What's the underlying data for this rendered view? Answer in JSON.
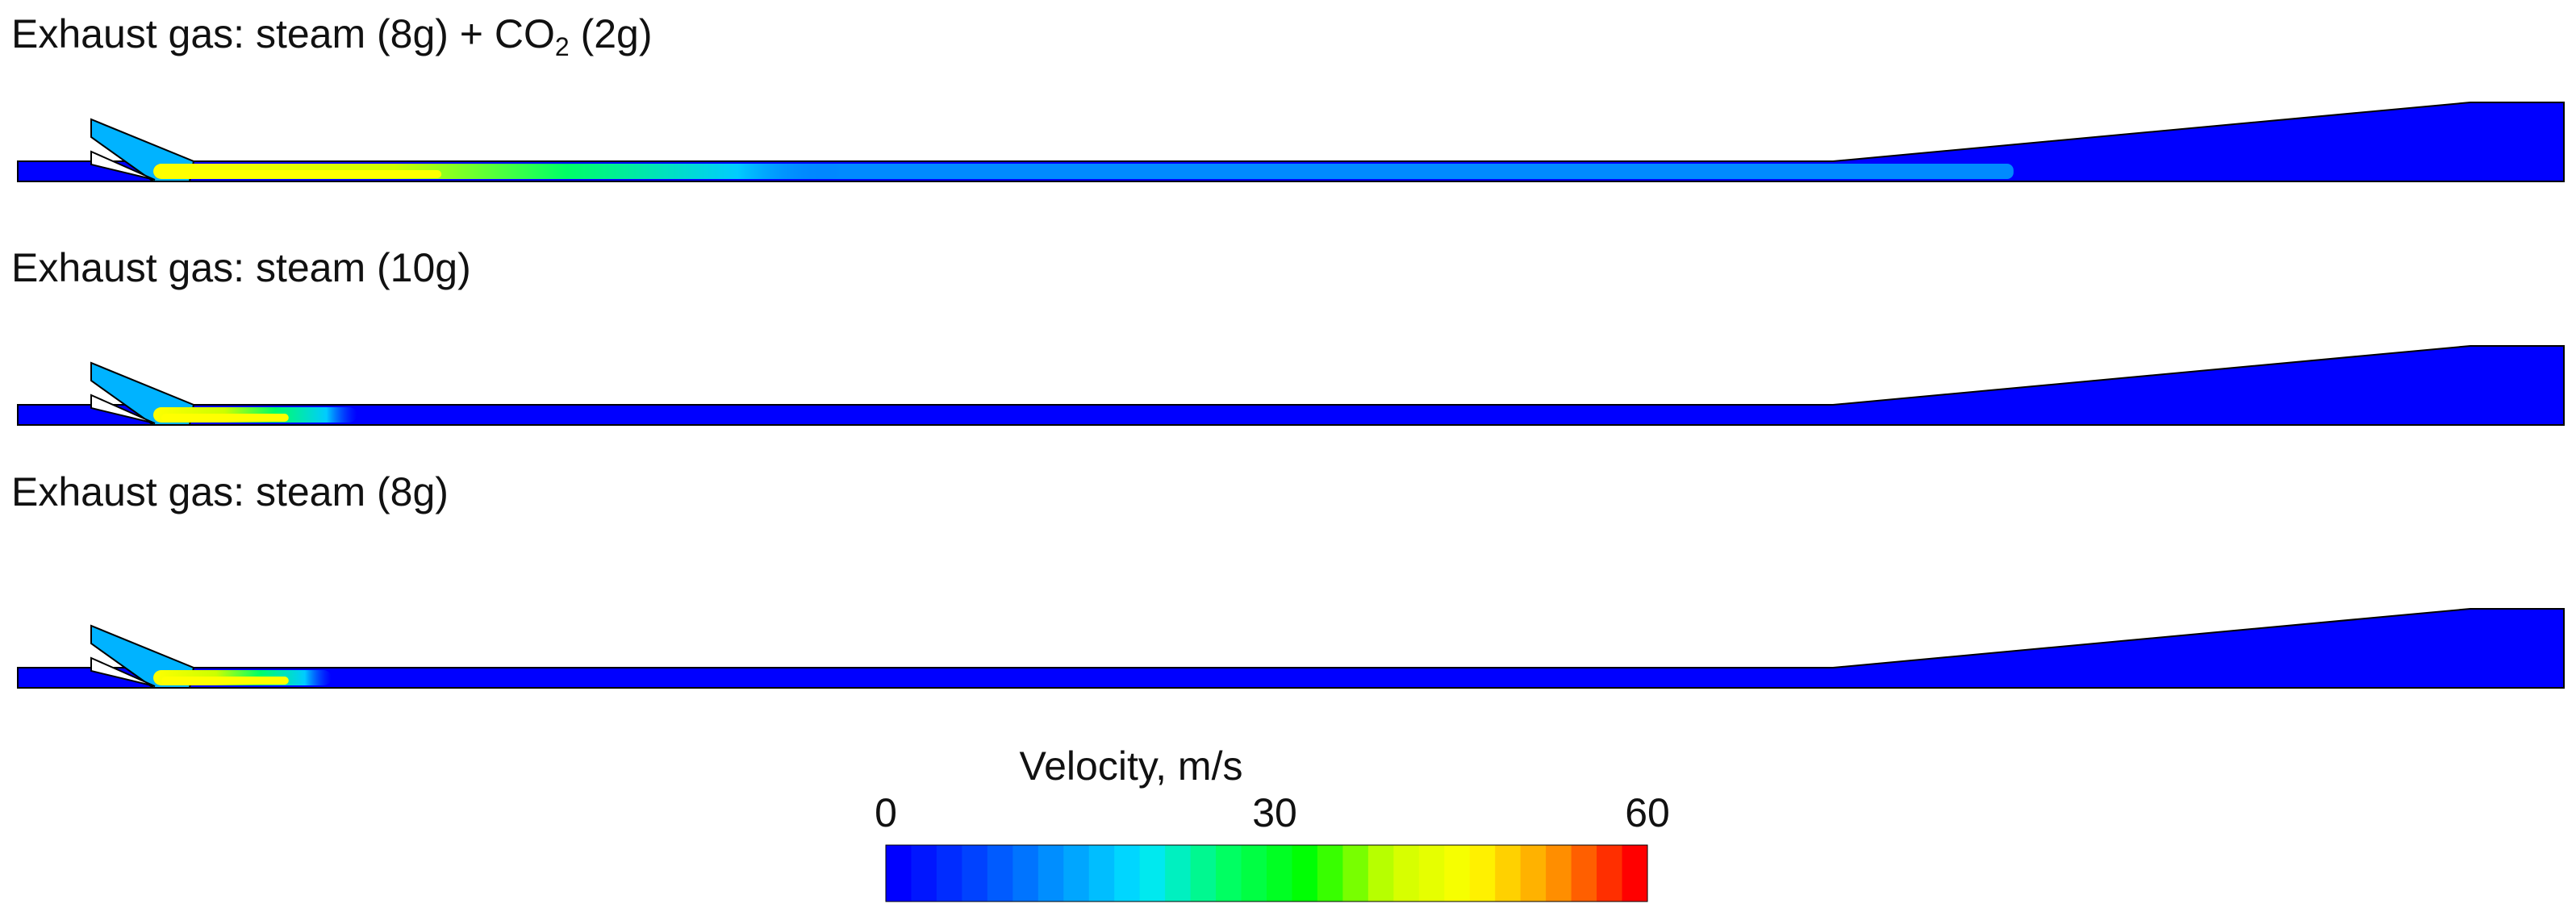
{
  "cases": [
    {
      "title_parts": [
        "Exhaust gas: steam (8g) + CO",
        "2",
        " (2g)"
      ],
      "jet": {
        "core_length": 0.11,
        "tail_length": 0.27,
        "bottom_tail": 0.55
      }
    },
    {
      "title_parts": [
        "Exhaust gas: steam (10g)",
        "",
        ""
      ],
      "jet": {
        "core_length": 0.05,
        "tail_length": 0.08,
        "bottom_tail": 0
      }
    },
    {
      "title_parts": [
        "Exhaust gas: steam (8g)",
        "",
        ""
      ],
      "jet": {
        "core_length": 0.05,
        "tail_length": 0.07,
        "bottom_tail": 0
      }
    }
  ],
  "colorbar": {
    "title": "Velocity, m/s",
    "ticks": [
      {
        "label": "0",
        "value": 0
      },
      {
        "label": "30",
        "value": 30
      },
      {
        "label": "60",
        "value": 60
      }
    ],
    "min": 0,
    "max": 60,
    "bands": 30,
    "palette": [
      "#0000ff",
      "#0047ff",
      "#0099ff",
      "#00e6ff",
      "#00ff66",
      "#00ff00",
      "#ccff00",
      "#ffff00",
      "#ff9900",
      "#ff0000"
    ]
  },
  "colors": {
    "ambient": "#0000ff",
    "jet_core": "#ffff00",
    "jet_mid": "#00ff66",
    "jet_outer": "#00ccff",
    "plume": "#0099ff"
  }
}
